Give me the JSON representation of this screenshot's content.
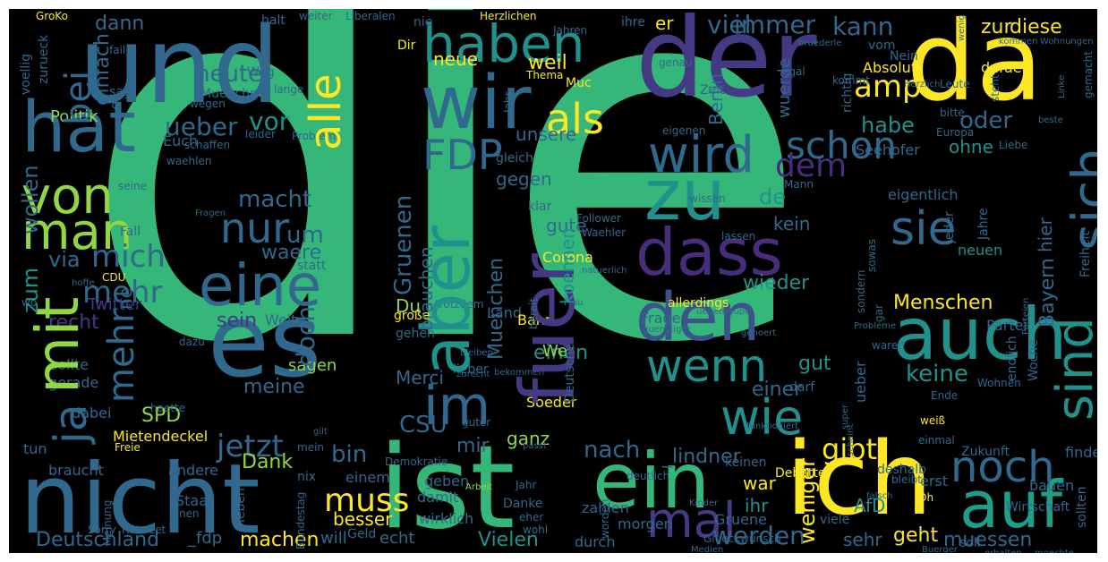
{
  "palette": {
    "green": "#35b779",
    "teal": "#21918c",
    "blue": "#31688e",
    "indigo": "#3b528b",
    "purple": "#443983",
    "deep": "#472d7b",
    "yellow": "#fde725",
    "lime": "#90d743",
    "aqua": "#1f9e89",
    "background": "#000000"
  },
  "words": {
    "die": "die",
    "und": "und",
    "der": "der",
    "da": "da",
    "nicht": "nicht",
    "ist": "ist",
    "ein": "ein",
    "ich": "ich",
    "auf": "auf",
    "wir": "wir",
    "zu": "zu",
    "dass": "dass",
    "den": "den",
    "auch": "auch",
    "es": "es",
    "eine": "eine",
    "hat": "hat",
    "von": "von",
    "man": "man",
    "mit": "mit",
    "aber": "aber",
    "fuer": "fuer",
    "haben": "haben",
    "als": "als",
    "wird": "wird",
    "sie": "sie",
    "sich": "sich",
    "sind": "sind",
    "noch": "noch",
    "wenn": "wenn",
    "wie": "wie",
    "im": "im",
    "mal": "mal",
    "FDP": "FDP",
    "nur": "nur",
    "schon": "schon",
    "alle": "alle",
    "bei": "bei",
    "ja": "ja",
    "mehr": "mehr",
    "kann": "kann",
    "immer": "immer",
    "viel": "viel",
    "amp": "amp",
    "heute": "heute",
    "dann": "dann",
    "einfach": "einfach",
    "ueber": "ueber",
    "vor": "vor",
    "Politik": "Politik",
    "wollen": "wollen",
    "mich": "mich",
    "via": "via",
    "zum": "zum",
    "recht": "recht",
    "macht": "macht",
    "um": "um",
    "waere": "waere",
    "beim": "beim",
    "sein": "sein",
    "doch": "doch",
    "meine": "meine",
    "sagen": "sagen",
    "SPD": "SPD",
    "jetzt": "jetzt",
    "bin": "bin",
    "Dank": "Dank",
    "muss": "muss",
    "besser": "besser",
    "machen": "machen",
    "Deutschland": "Deutschland",
    "CSU": "CSU",
    "mir": "mir",
    "ganz": "ganz",
    "nach": "nach",
    "werden": "werden",
    "Vielen": "Vielen",
    "gibt": "gibt",
    "geht": "geht",
    "sehr": "sehr",
    "muessen": "muessen",
    "keine": "keine",
    "Menschen": "Menschen",
    "oder": "oder",
    "habe": "habe",
    "dem": "dem",
    "de": "de",
    "kein": "kein",
    "wieder": "wieder",
    "gut": "gut",
    "einer": "einer",
    "war": "war",
    "ihr": "ihr",
    "AfD": "AfD",
    "weniger": "weniger",
    "Bayern": "Bayern",
    "Muenchen": "Muenchen",
    "Gruenen": "Gruenen",
    "einen": "einen",
    "Merci": "Merci",
    "Berlin": "Berlin",
    "wuerde": "wuerde",
    "richtig": "richtig",
    "unsere": "unsere",
    "gegen": "gegen",
    "gute": "gute",
    "brauchen": "brauchen",
    "Corona": "Corona",
    "koennen": "koennen",
    "zur": "zur",
    "diese": "diese",
    "er": "er",
    "weil": "weil",
    "neue": "neue",
    "Euch": "Euch",
    "Seehofer": "Seehofer",
    "ohne": "ohne",
    "eigentlich": "eigentlich",
    "neuen": "neuen",
    "jeder": "jeder",
    "Jahre": "Jahre",
    "endlich": "endlich",
    "Woche": "Woche",
    "Twitter": "Twitter",
    "ne": "ne",
    "Wer": "Wer",
    "Du": "Du",
    "Frage": "Frage",
    "Warum": "Warum",
    "Partei": "Partei",
    "Absolut": "Absolut",
    "dafuer": "dafuer",
    "Freiheit": "Freiheit",
    "Mietendeckel": "Mietendeckel",
    "lindner": "_lindner",
    "fdp": "_fdp",
    "Land": "Land",
    "Bahn": "Bahn",
    "Soeder": "Soeder",
    "Welt": "Welt",
    "sollte": "sollte",
    "gerade": "gerade",
    "dabei": "dabei",
    "tun": "tun",
    "braucht": "braucht",
    "andere": "andere",
    "Staat": "Staat",
    "echt": "echt",
    "will": "will",
    "durch": "durch",
    "wirklich": "wirklich",
    "damit": "damit",
    "einem": "einem",
    "geben": "geben",
    "zahlen": "zahlen",
    "morgen": "morgen",
    "Gruene": "Gruene",
    "viele": "viele",
    "erst": "erst",
    "bauen": "bauen",
    "finde": "finde",
    "sollten": "sollten",
    "Zukunft": "Zukunft",
    "Wirtschaft": "Wirtschaft",
    "soll": "soll",
    "stehen": "stehen",
    "Debatte": "Debatte",
    "deshalb": "deshalb",
    "keinen": "keinen",
    "GroKo": "GroKo",
    "halt": "halt",
    "weiter": "weiter",
    "Liberalen": "Liberalen",
    "Herzlichen": "Herzlichen",
    "nie": "nie",
    "Jahren": "Jahren",
    "ihre": "ihre",
    "sagt": "sagt",
    "Muenchner": "Muenchner",
    "wegen": "wegen",
    "Zeit": "Zeit",
    "Weg": "Weg",
    "Nein": "Nein",
    "vom": "vom",
    "Leute": "Leute",
    "Europa": "Europa",
    "Problem": "Problem",
    "leider": "leider",
    "Liebe": "Liebe",
    "seine": "seine",
    "Fall": "Fall",
    "statt": "statt",
    "gesagt": "gesagt",
    "Thema": "Thema",
    "gleich": "gleich",
    "klar": "klar",
    "allerdings": "allerdings",
    "bitte": "bitte",
    "Regierung": "Regierung",
    "Wohnen": "Wohnen",
    "ihrer": "ihrer",
    "darf": "darf",
    "Ende": "Ende",
    "lieber": "lieber",
    "Wahl": "Wahl",
    "Linke": "Linke",
    "gemacht": "gemacht",
    "wenig": "wenig",
    "wo": "wo",
    "ob": "ob",
    "hier": "hier",
    "gar": "gar",
    "super": "super",
    "scheint": "scheint",
    "sowas": "sowas",
    "sondern": "sondern",
    "voellig": "voellig",
    "zurueck": "zurueck",
    "leben": "leben",
    "Gluckwunsch": "Glueckwunsch",
    "CDU": "CDU",
    "hoffe": "hoffe",
    "hab": "hab",
    "Danke": "Danke",
    "Oh": "Oh",
    "ersten": "ersten",
    "Bundestag": "Bundestag",
    "Geld": "Geld",
    "Meinung": "Meinung",
    "Sorry": "Sorry",
    "nen": "nen",
    "Retweet": "Retweet",
    "Deutsche": "Deutsche",
    "Arbeit": "Arbeit",
    "Jahr": "Jahr",
    "Kinder": "Kinder",
    "hinter": "hinter",
    "kommt": "kommt",
    "egal": "egal",
    "genau": "genau",
    "Tag": "Tag",
    "eigenen": "eigenen",
    "Mann": "Mann",
    "bleibt": "bleibt",
    "einmal": "einmal",
    "unter": "unter",
    "sehen": "sehen",
    "Follower": "Follower",
    "Waehler": "Waehler",
    "wissen": "wissen",
    "lassen": "lassen",
    "Ihnen": "Ihnen",
    "Frau": "Frau",
    "bereit": "bereit",
    "trotzdem": "trotzdem",
    "Leben": "Leben",
    "gehen": "gehen",
    "dazu": "dazu",
    "muenchen": "muenchen",
    "Muc": "Muc",
    "Dir": "Dir",
    "lange": "lange",
    "erhalten": "erhalten",
    "moechte": "moechte",
    "Buerger": "Buerger",
    "Medien": "Medien",
    "weiss": "weiß",
    "Bahn2": "Bahn",
    "grosse": "große",
    "Freie": "Freie",
    "mein": "mein",
    "Demokratie": "Demokratie",
    "nix": "nix",
    "passt": "passt",
    "Wohnungen": "Wohnungen",
    "fail": "fail",
    "kommen": "kommen",
    "haette": "haette",
    "steht": "steht",
    "beste": "beste",
    "bruderle": "bruederle",
    "koennte": "koennte",
    "Schulen": "Schulen",
    "gilt": "gilt",
    "guter": "guter",
    "mehrheit": "Mehrheit",
    "schaffen": "schaffen",
    "waehlen": "waehlen",
    "Fragen": "Fragen",
    "Seite": "Seite",
    "falsch": "falsch",
    "gehoert": "gehoert",
    "waren": "waren",
    "Wohnung": "Wohnung",
    "Herzlich": "Herzlich",
    "eher": "eher",
    "tatsaechlich": "tatsaechlich",
    "deutlich": "deutlich",
    "bleiben": "bleiben",
    "worden": "worden",
    "funktioniert": "funktioniert",
    "guenstiger": "guenstiger",
    "ueberhaupt": "ueberhaupt",
    "Parteien": "Parteien",
    "natuerlich": "natuerlich",
    "zurecht": "zurecht",
    "Problem2": "Probleme",
    "wohl": "wohl",
    "bekommen": "bekommen"
  }
}
